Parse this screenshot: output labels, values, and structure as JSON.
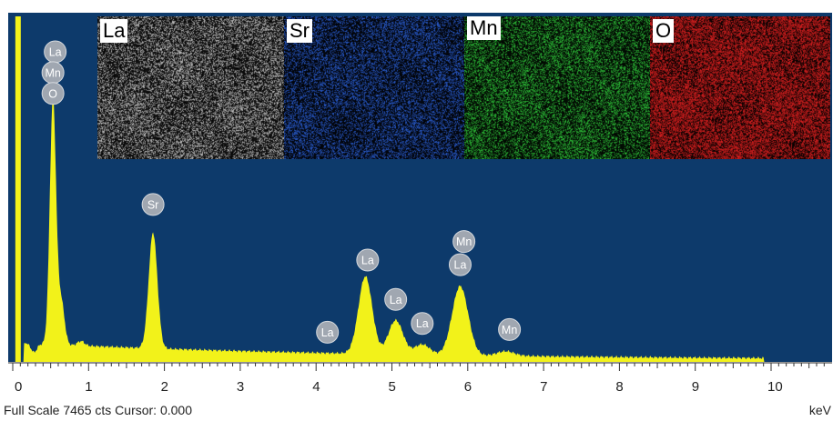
{
  "chart_data": {
    "type": "line",
    "xlabel": "keV",
    "xlim": [
      0,
      10.8
    ],
    "x_ticks": [
      "0",
      "1",
      "2",
      "3",
      "4",
      "5",
      "6",
      "7",
      "8",
      "9",
      "10"
    ],
    "peaks": [
      {
        "x": 0.01,
        "y": 7465
      },
      {
        "x": 0.28,
        "y": 210
      },
      {
        "x": 0.53,
        "y": 5700
      },
      {
        "x": 0.64,
        "y": 1300
      },
      {
        "x": 0.9,
        "y": 450
      },
      {
        "x": 1.85,
        "y": 2800
      },
      {
        "x": 4.65,
        "y": 1850
      },
      {
        "x": 5.05,
        "y": 900
      },
      {
        "x": 5.4,
        "y": 380
      },
      {
        "x": 5.9,
        "y": 1640
      },
      {
        "x": 6.5,
        "y": 230
      }
    ],
    "element_labels": [
      {
        "text": "La",
        "x": 0.56,
        "y": 6700
      },
      {
        "text": "Mn",
        "x": 0.53,
        "y": 6250
      },
      {
        "text": "O",
        "x": 0.53,
        "y": 5800
      },
      {
        "text": "Sr",
        "x": 1.85,
        "y": 3400
      },
      {
        "text": "La",
        "x": 4.15,
        "y": 640
      },
      {
        "text": "La",
        "x": 4.68,
        "y": 2200
      },
      {
        "text": "La",
        "x": 5.05,
        "y": 1350
      },
      {
        "text": "La",
        "x": 5.4,
        "y": 830
      },
      {
        "text": "Mn",
        "x": 5.95,
        "y": 2600
      },
      {
        "text": "La",
        "x": 5.9,
        "y": 2100
      },
      {
        "text": "Mn",
        "x": 6.55,
        "y": 700
      }
    ]
  },
  "status": {
    "full_scale": "Full Scale 7465 cts Cursor: 0.000",
    "unit": "keV"
  },
  "maps": [
    {
      "label": "La",
      "color": "#c8c8c8"
    },
    {
      "label": "Sr",
      "color": "#2a5fd6"
    },
    {
      "label": "Mn",
      "color": "#2fc83a"
    },
    {
      "label": "O",
      "color": "#e02020"
    }
  ],
  "colors": {
    "background": "#0d3a6b",
    "spectrum": "#f2f21a",
    "label_bubble": "#a0a7b1"
  }
}
